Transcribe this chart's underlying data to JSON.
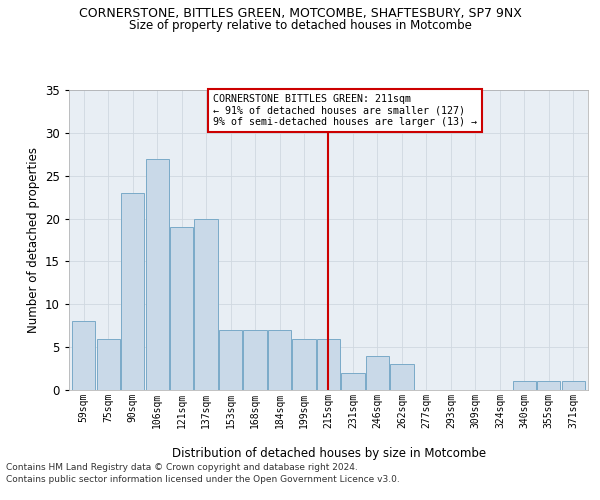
{
  "title": "CORNERSTONE, BITTLES GREEN, MOTCOMBE, SHAFTESBURY, SP7 9NX",
  "subtitle": "Size of property relative to detached houses in Motcombe",
  "xlabel": "Distribution of detached houses by size in Motcombe",
  "ylabel": "Number of detached properties",
  "categories": [
    "59sqm",
    "75sqm",
    "90sqm",
    "106sqm",
    "121sqm",
    "137sqm",
    "153sqm",
    "168sqm",
    "184sqm",
    "199sqm",
    "215sqm",
    "231sqm",
    "246sqm",
    "262sqm",
    "277sqm",
    "293sqm",
    "309sqm",
    "324sqm",
    "340sqm",
    "355sqm",
    "371sqm"
  ],
  "values": [
    8,
    6,
    23,
    27,
    19,
    20,
    7,
    7,
    7,
    6,
    6,
    2,
    4,
    3,
    0,
    0,
    0,
    0,
    1,
    1,
    1
  ],
  "bar_color": "#c9d9e8",
  "bar_edge_color": "#7aaac8",
  "grid_color": "#d0d8e0",
  "background_color": "#e8eef4",
  "annotation_text_line1": "CORNERSTONE BITTLES GREEN: 211sqm",
  "annotation_text_line2": "← 91% of detached houses are smaller (127)",
  "annotation_text_line3": "9% of semi-detached houses are larger (13) →",
  "vline_color": "#cc0000",
  "vline_x_index": 10,
  "ylim": [
    0,
    35
  ],
  "yticks": [
    0,
    5,
    10,
    15,
    20,
    25,
    30,
    35
  ],
  "footer_line1": "Contains HM Land Registry data © Crown copyright and database right 2024.",
  "footer_line2": "Contains public sector information licensed under the Open Government Licence v3.0."
}
